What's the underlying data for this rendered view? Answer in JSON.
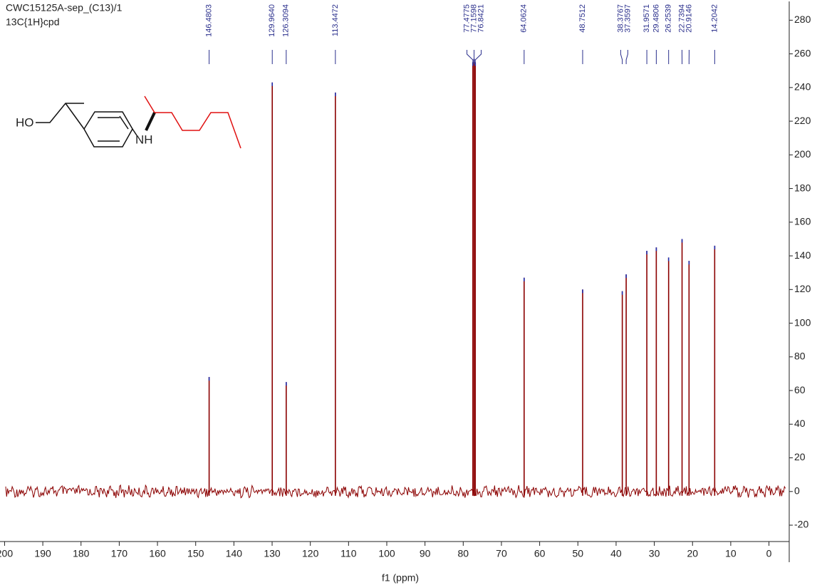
{
  "chart_data": {
    "type": "spectrum",
    "title": "CWC15125A-sep_(C13)/1",
    "subtitle": "13C{1H}cpd",
    "xlabel": "f1 (ppm)",
    "x": [
      146.4803,
      129.964,
      126.3094,
      113.4472,
      77.4775,
      77.1598,
      76.8421,
      64.0624,
      48.7512,
      38.3767,
      37.3597,
      31.9571,
      29.4806,
      26.2539,
      22.7394,
      20.9146,
      14.2042
    ],
    "peak_labels": [
      "146.4803",
      "129.9640",
      "126.3094",
      "113.4472",
      "77.4775",
      "77.1598",
      "76.8421",
      "64.0624",
      "48.7512",
      "38.3767",
      "37.3597",
      "31.9571",
      "29.4806",
      "26.2539",
      "22.7394",
      "20.9146",
      "14.2042"
    ],
    "values": [
      68,
      243,
      65,
      237,
      255,
      257,
      255,
      127,
      120,
      119,
      129,
      143,
      145,
      139,
      150,
      137,
      146
    ],
    "color": "#8b0000",
    "tip_color": "#2030b0",
    "label_color": "#2a2f8c",
    "xlim": [
      201.2,
      -5.3
    ],
    "xticks": [
      200,
      190,
      180,
      170,
      160,
      150,
      140,
      130,
      120,
      110,
      100,
      90,
      80,
      70,
      60,
      50,
      40,
      30,
      20,
      10,
      0
    ],
    "ylim": [
      -42,
      292
    ],
    "yticks": [
      -20,
      0,
      20,
      40,
      60,
      80,
      100,
      120,
      140,
      160,
      180,
      200,
      220,
      240,
      260,
      280
    ],
    "structure_labels": [
      "HO",
      "NH"
    ]
  }
}
